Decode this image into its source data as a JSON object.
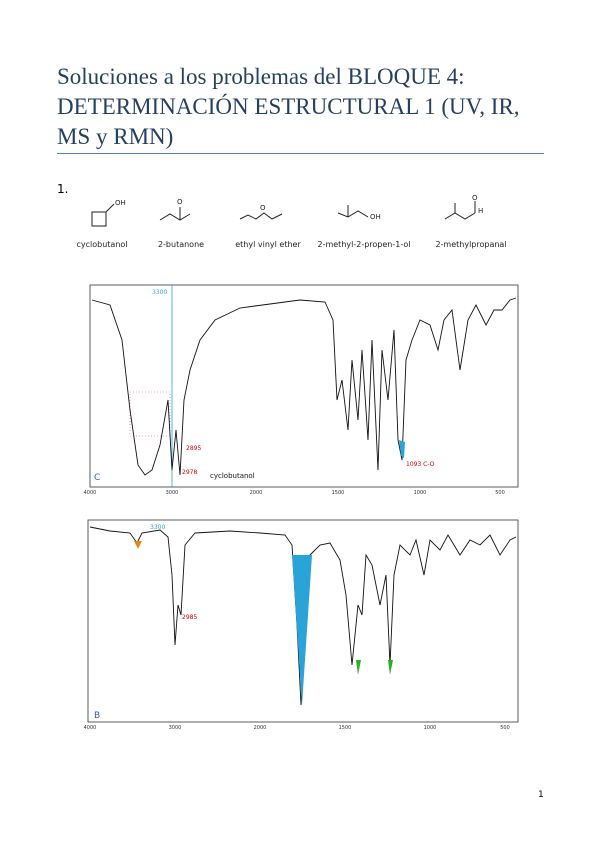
{
  "header": {
    "title_lines": [
      "Soluciones a los problemas del BLOQUE 4:",
      "DETERMINACIÓN ESTRUCTURAL 1 (UV, IR,",
      "MS y RMN)"
    ]
  },
  "problem_number": "1.",
  "molecules": [
    "cyclobutanol",
    "2-butanone",
    "ethyl vinyl ether",
    "2-methyl-2-propen-1-ol",
    "2-methylpropanal"
  ],
  "spectra": [
    {
      "sample_label": "C",
      "compound": "cyclobutanol",
      "marker": "3300",
      "peaks": [
        "2978",
        "2895",
        "1093 C-O"
      ],
      "x_ticks": [
        "4000",
        "3000",
        "2000",
        "1500",
        "1000",
        "500"
      ]
    },
    {
      "sample_label": "B",
      "marker": "3300",
      "peaks": [
        "2985"
      ],
      "x_ticks": [
        "4000",
        "3000",
        "2000",
        "1500",
        "1000",
        "500"
      ]
    }
  ],
  "page_number": "1"
}
